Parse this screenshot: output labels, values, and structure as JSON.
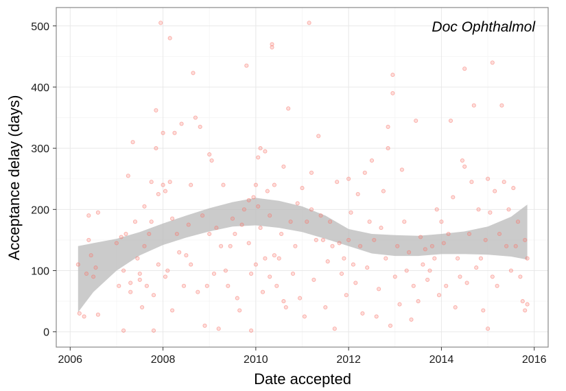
{
  "chart_data": {
    "type": "scatter",
    "title": "",
    "annotation": "Doc Ophthalmol",
    "xlabel": "Date accepted",
    "ylabel": "Acceptance delay (days)",
    "xlim": [
      2005.7,
      2016.3
    ],
    "ylim": [
      -25,
      530
    ],
    "grid": true,
    "legend": "none",
    "x_ticks": [
      2006,
      2008,
      2010,
      2012,
      2014,
      2016
    ],
    "y_ticks": [
      0,
      100,
      200,
      300,
      400,
      500
    ],
    "colors": {
      "points": "#f8766d",
      "band": "#bdbdbd",
      "grid_major": "#e8e8e8",
      "grid_minor": "#f4f4f4",
      "panel_border": "#888888"
    },
    "band": {
      "x": [
        2006.17,
        2006.5,
        2007.0,
        2007.5,
        2008.0,
        2008.5,
        2009.0,
        2009.5,
        2010.0,
        2010.5,
        2011.0,
        2011.5,
        2012.0,
        2012.5,
        2013.0,
        2013.5,
        2014.0,
        2014.5,
        2015.0,
        2015.5,
        2015.85
      ],
      "upper": [
        140,
        145,
        152,
        163,
        177,
        190,
        202,
        212,
        219,
        214,
        205,
        190,
        168,
        160,
        158,
        157,
        160,
        164,
        172,
        188,
        208
      ],
      "lower": [
        32,
        65,
        100,
        125,
        142,
        154,
        164,
        172,
        174,
        170,
        163,
        152,
        140,
        128,
        124,
        124,
        127,
        127,
        126,
        123,
        118
      ]
    },
    "points": [
      [
        2006.17,
        110
      ],
      [
        2006.2,
        30
      ],
      [
        2006.3,
        25
      ],
      [
        2006.35,
        95
      ],
      [
        2006.4,
        190
      ],
      [
        2006.4,
        150
      ],
      [
        2006.45,
        125
      ],
      [
        2006.5,
        90
      ],
      [
        2006.55,
        105
      ],
      [
        2006.6,
        195
      ],
      [
        2006.6,
        28
      ],
      [
        2007.0,
        145
      ],
      [
        2007.05,
        75
      ],
      [
        2007.1,
        155
      ],
      [
        2007.15,
        100
      ],
      [
        2007.15,
        2
      ],
      [
        2007.2,
        160
      ],
      [
        2007.25,
        255
      ],
      [
        2007.3,
        80
      ],
      [
        2007.3,
        65
      ],
      [
        2007.35,
        310
      ],
      [
        2007.4,
        180
      ],
      [
        2007.45,
        120
      ],
      [
        2007.5,
        95
      ],
      [
        2007.5,
        85
      ],
      [
        2007.55,
        40
      ],
      [
        2007.6,
        140
      ],
      [
        2007.6,
        205
      ],
      [
        2007.65,
        75
      ],
      [
        2007.7,
        160
      ],
      [
        2007.75,
        245
      ],
      [
        2007.75,
        180
      ],
      [
        2007.8,
        60
      ],
      [
        2007.8,
        2
      ],
      [
        2007.85,
        300
      ],
      [
        2007.85,
        362
      ],
      [
        2007.9,
        110
      ],
      [
        2007.9,
        225
      ],
      [
        2007.95,
        505
      ],
      [
        2008.0,
        325
      ],
      [
        2008.0,
        240
      ],
      [
        2008.05,
        230
      ],
      [
        2008.05,
        90
      ],
      [
        2008.1,
        100
      ],
      [
        2008.15,
        480
      ],
      [
        2008.15,
        245
      ],
      [
        2008.2,
        185
      ],
      [
        2008.2,
        35
      ],
      [
        2008.25,
        325
      ],
      [
        2008.3,
        160
      ],
      [
        2008.35,
        130
      ],
      [
        2008.4,
        340
      ],
      [
        2008.45,
        75
      ],
      [
        2008.5,
        125
      ],
      [
        2008.55,
        175
      ],
      [
        2008.6,
        240
      ],
      [
        2008.6,
        110
      ],
      [
        2008.65,
        423
      ],
      [
        2008.7,
        350
      ],
      [
        2008.75,
        65
      ],
      [
        2008.8,
        335
      ],
      [
        2008.85,
        190
      ],
      [
        2008.9,
        10
      ],
      [
        2008.95,
        75
      ],
      [
        2009.0,
        290
      ],
      [
        2009.0,
        160
      ],
      [
        2009.05,
        280
      ],
      [
        2009.1,
        95
      ],
      [
        2009.15,
        170
      ],
      [
        2009.2,
        5
      ],
      [
        2009.25,
        140
      ],
      [
        2009.3,
        240
      ],
      [
        2009.35,
        100
      ],
      [
        2009.4,
        75
      ],
      [
        2009.45,
        140
      ],
      [
        2009.5,
        185
      ],
      [
        2009.55,
        160
      ],
      [
        2009.6,
        55
      ],
      [
        2009.65,
        35
      ],
      [
        2009.7,
        175
      ],
      [
        2009.75,
        200
      ],
      [
        2009.8,
        435
      ],
      [
        2009.85,
        145
      ],
      [
        2009.85,
        215
      ],
      [
        2009.9,
        95
      ],
      [
        2009.9,
        2
      ],
      [
        2009.95,
        220
      ],
      [
        2010.0,
        240
      ],
      [
        2010.0,
        110
      ],
      [
        2010.05,
        285
      ],
      [
        2010.05,
        205
      ],
      [
        2010.1,
        300
      ],
      [
        2010.1,
        170
      ],
      [
        2010.15,
        65
      ],
      [
        2010.2,
        120
      ],
      [
        2010.2,
        295
      ],
      [
        2010.25,
        230
      ],
      [
        2010.3,
        90
      ],
      [
        2010.3,
        190
      ],
      [
        2010.35,
        465
      ],
      [
        2010.35,
        470
      ],
      [
        2010.4,
        240
      ],
      [
        2010.4,
        125
      ],
      [
        2010.45,
        75
      ],
      [
        2010.5,
        120
      ],
      [
        2010.55,
        160
      ],
      [
        2010.6,
        270
      ],
      [
        2010.6,
        50
      ],
      [
        2010.65,
        40
      ],
      [
        2010.7,
        365
      ],
      [
        2010.75,
        180
      ],
      [
        2010.8,
        95
      ],
      [
        2010.85,
        140
      ],
      [
        2010.9,
        210
      ],
      [
        2010.95,
        55
      ],
      [
        2011.0,
        235
      ],
      [
        2011.05,
        25
      ],
      [
        2011.1,
        180
      ],
      [
        2011.15,
        505
      ],
      [
        2011.2,
        260
      ],
      [
        2011.2,
        200
      ],
      [
        2011.25,
        85
      ],
      [
        2011.3,
        150
      ],
      [
        2011.35,
        320
      ],
      [
        2011.4,
        190
      ],
      [
        2011.45,
        150
      ],
      [
        2011.5,
        40
      ],
      [
        2011.55,
        115
      ],
      [
        2011.6,
        180
      ],
      [
        2011.65,
        140
      ],
      [
        2011.7,
        5
      ],
      [
        2011.75,
        245
      ],
      [
        2011.8,
        145
      ],
      [
        2011.85,
        95
      ],
      [
        2011.9,
        120
      ],
      [
        2011.95,
        60
      ],
      [
        2012.0,
        250
      ],
      [
        2012.0,
        150
      ],
      [
        2012.05,
        195
      ],
      [
        2012.1,
        110
      ],
      [
        2012.15,
        80
      ],
      [
        2012.2,
        225
      ],
      [
        2012.25,
        140
      ],
      [
        2012.3,
        30
      ],
      [
        2012.35,
        260
      ],
      [
        2012.4,
        105
      ],
      [
        2012.45,
        180
      ],
      [
        2012.5,
        280
      ],
      [
        2012.55,
        150
      ],
      [
        2012.6,
        25
      ],
      [
        2012.65,
        70
      ],
      [
        2012.7,
        170
      ],
      [
        2012.75,
        230
      ],
      [
        2012.8,
        120
      ],
      [
        2012.85,
        335
      ],
      [
        2012.85,
        300
      ],
      [
        2012.9,
        10
      ],
      [
        2012.95,
        420
      ],
      [
        2012.95,
        390
      ],
      [
        2013.0,
        90
      ],
      [
        2013.05,
        140
      ],
      [
        2013.1,
        45
      ],
      [
        2013.15,
        265
      ],
      [
        2013.2,
        180
      ],
      [
        2013.25,
        100
      ],
      [
        2013.3,
        130
      ],
      [
        2013.35,
        20
      ],
      [
        2013.4,
        75
      ],
      [
        2013.45,
        345
      ],
      [
        2013.5,
        50
      ],
      [
        2013.55,
        155
      ],
      [
        2013.6,
        110
      ],
      [
        2013.65,
        135
      ],
      [
        2013.7,
        85
      ],
      [
        2013.75,
        100
      ],
      [
        2013.8,
        140
      ],
      [
        2013.85,
        120
      ],
      [
        2013.9,
        200
      ],
      [
        2013.95,
        60
      ],
      [
        2014.0,
        180
      ],
      [
        2014.05,
        145
      ],
      [
        2014.1,
        75
      ],
      [
        2014.15,
        160
      ],
      [
        2014.2,
        345
      ],
      [
        2014.25,
        220
      ],
      [
        2014.3,
        40
      ],
      [
        2014.35,
        120
      ],
      [
        2014.4,
        90
      ],
      [
        2014.45,
        280
      ],
      [
        2014.5,
        430
      ],
      [
        2014.5,
        270
      ],
      [
        2014.55,
        80
      ],
      [
        2014.6,
        160
      ],
      [
        2014.65,
        245
      ],
      [
        2014.7,
        370
      ],
      [
        2014.75,
        105
      ],
      [
        2014.8,
        200
      ],
      [
        2014.85,
        120
      ],
      [
        2014.9,
        35
      ],
      [
        2014.95,
        150
      ],
      [
        2015.0,
        250
      ],
      [
        2015.0,
        5
      ],
      [
        2015.05,
        195
      ],
      [
        2015.1,
        440
      ],
      [
        2015.1,
        90
      ],
      [
        2015.15,
        230
      ],
      [
        2015.2,
        75
      ],
      [
        2015.25,
        160
      ],
      [
        2015.3,
        370
      ],
      [
        2015.35,
        245
      ],
      [
        2015.4,
        140
      ],
      [
        2015.45,
        200
      ],
      [
        2015.5,
        100
      ],
      [
        2015.55,
        235
      ],
      [
        2015.6,
        140
      ],
      [
        2015.65,
        180
      ],
      [
        2015.7,
        90
      ],
      [
        2015.75,
        50
      ],
      [
        2015.8,
        35
      ],
      [
        2015.8,
        150
      ],
      [
        2015.85,
        120
      ],
      [
        2015.85,
        45
      ]
    ]
  }
}
